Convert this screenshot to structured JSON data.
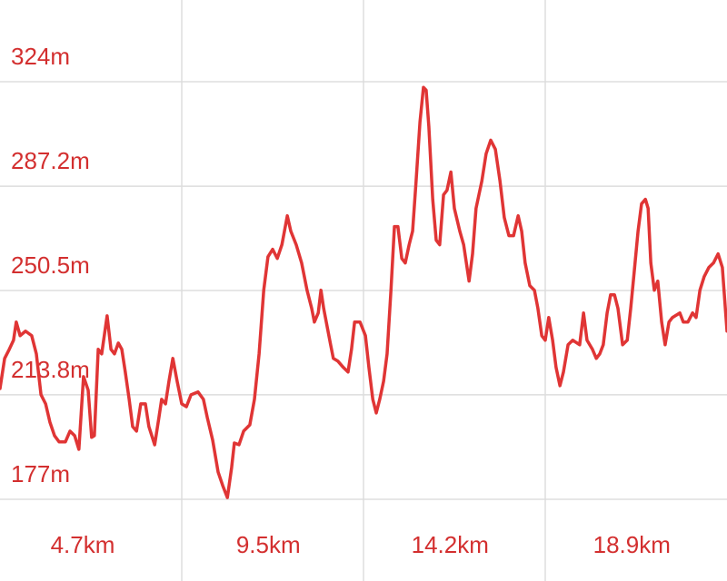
{
  "chart_data": {
    "type": "line",
    "x": [
      2.35,
      2.47,
      2.59,
      2.7,
      2.77,
      2.87,
      3.01,
      3.17,
      3.29,
      3.41,
      3.53,
      3.64,
      3.76,
      3.88,
      4.04,
      4.16,
      4.28,
      4.39,
      4.51,
      4.63,
      4.72,
      4.79,
      4.89,
      4.98,
      5.08,
      5.12,
      5.22,
      5.31,
      5.41,
      5.5,
      5.59,
      5.69,
      5.78,
      5.88,
      5.99,
      6.11,
      6.2,
      6.35,
      6.46,
      6.53,
      6.63,
      6.72,
      6.82,
      6.93,
      7.05,
      7.17,
      7.29,
      7.47,
      7.61,
      7.71,
      7.85,
      7.99,
      8.11,
      8.23,
      8.34,
      8.41,
      8.53,
      8.65,
      8.81,
      8.93,
      9.05,
      9.17,
      9.28,
      9.4,
      9.52,
      9.64,
      9.78,
      9.87,
      10.01,
      10.15,
      10.29,
      10.41,
      10.48,
      10.58,
      10.65,
      10.72,
      10.81,
      10.9,
      10.97,
      11.09,
      11.23,
      11.35,
      11.44,
      11.52,
      11.66,
      11.8,
      11.89,
      11.99,
      12.08,
      12.17,
      12.27,
      12.36,
      12.46,
      12.55,
      12.64,
      12.74,
      12.83,
      12.93,
      13.02,
      13.11,
      13.21,
      13.3,
      13.37,
      13.44,
      13.54,
      13.63,
      13.72,
      13.82,
      13.91,
      14.01,
      14.1,
      14.24,
      14.34,
      14.48,
      14.57,
      14.66,
      14.81,
      14.92,
      15.04,
      15.16,
      15.28,
      15.39,
      15.51,
      15.63,
      15.75,
      15.84,
      15.93,
      16.05,
      16.17,
      16.26,
      16.36,
      16.45,
      16.54,
      16.64,
      16.73,
      16.83,
      16.92,
      17.04,
      17.16,
      17.34,
      17.44,
      17.53,
      17.67,
      17.77,
      17.86,
      17.95,
      18.05,
      18.14,
      18.24,
      18.33,
      18.45,
      18.57,
      18.66,
      18.75,
      18.85,
      18.94,
      19.04,
      19.11,
      19.18,
      19.27,
      19.36,
      19.46,
      19.55,
      19.65,
      19.74,
      19.93,
      20.02,
      20.14,
      20.26,
      20.35,
      20.45,
      20.56,
      20.68,
      20.8,
      20.92,
      21.03,
      21.15
    ],
    "values": [
      216.0,
      226.6,
      229.8,
      233.0,
      239.4,
      234.6,
      236.2,
      234.6,
      228.2,
      213.8,
      210.6,
      204.2,
      199.4,
      197.2,
      197.2,
      201.0,
      199.4,
      194.6,
      220.2,
      215.4,
      198.8,
      199.4,
      229.8,
      228.2,
      237.8,
      241.6,
      229.8,
      228.2,
      232.0,
      229.8,
      221.8,
      212.2,
      202.6,
      201.0,
      210.6,
      210.6,
      202.6,
      196.2,
      205.8,
      212.2,
      210.6,
      218.6,
      226.6,
      218.6,
      210.6,
      209.6,
      213.8,
      214.8,
      212.2,
      205.8,
      197.8,
      186.6,
      181.8,
      177.6,
      188.2,
      196.8,
      196.2,
      201.0,
      203.2,
      212.2,
      228.2,
      250.6,
      262.4,
      265.0,
      261.8,
      266.6,
      276.8,
      271.4,
      266.6,
      260.2,
      250.6,
      244.2,
      239.4,
      242.6,
      250.6,
      244.2,
      237.8,
      231.4,
      226.6,
      225.6,
      223.4,
      221.8,
      229.8,
      239.4,
      239.4,
      234.6,
      223.4,
      212.2,
      207.4,
      212.2,
      218.6,
      228.2,
      250.6,
      273.0,
      273.0,
      261.8,
      260.2,
      266.6,
      271.4,
      289.0,
      309.8,
      322.0,
      321.0,
      308.2,
      282.6,
      268.2,
      266.6,
      284.2,
      285.8,
      292.2,
      279.4,
      271.4,
      266.6,
      253.8,
      263.4,
      279.4,
      289.0,
      298.6,
      303.4,
      300.2,
      289.0,
      276.2,
      269.8,
      269.8,
      276.8,
      271.4,
      260.2,
      252.2,
      250.6,
      244.2,
      234.6,
      233.0,
      241.0,
      233.0,
      223.4,
      217.0,
      221.8,
      231.4,
      233.0,
      231.4,
      242.6,
      233.0,
      229.8,
      226.6,
      228.2,
      231.4,
      242.6,
      249.0,
      249.0,
      244.2,
      231.4,
      233.0,
      244.2,
      257.0,
      271.4,
      281.0,
      282.6,
      279.4,
      260.2,
      250.6,
      253.8,
      239.4,
      231.4,
      239.4,
      241.0,
      242.6,
      239.4,
      239.4,
      242.6,
      241.0,
      250.6,
      255.4,
      258.6,
      260.2,
      263.4,
      258.6,
      236.2
    ],
    "color": "#e03535",
    "xlim": [
      2.35,
      21.15
    ],
    "xticks": [
      {
        "value": 4.7,
        "label": "4.7km"
      },
      {
        "value": 9.5,
        "label": "9.5km"
      },
      {
        "value": 14.2,
        "label": "14.2km"
      },
      {
        "value": 18.9,
        "label": "18.9km"
      }
    ],
    "ylim": [
      177,
      324
    ],
    "yticks": [
      {
        "value": 177,
        "label": "177m"
      },
      {
        "value": 213.8,
        "label": "213.8m"
      },
      {
        "value": 250.5,
        "label": "250.5m"
      },
      {
        "value": 287.2,
        "label": "287.2m"
      },
      {
        "value": 324,
        "label": "324m"
      }
    ],
    "grid": true
  }
}
